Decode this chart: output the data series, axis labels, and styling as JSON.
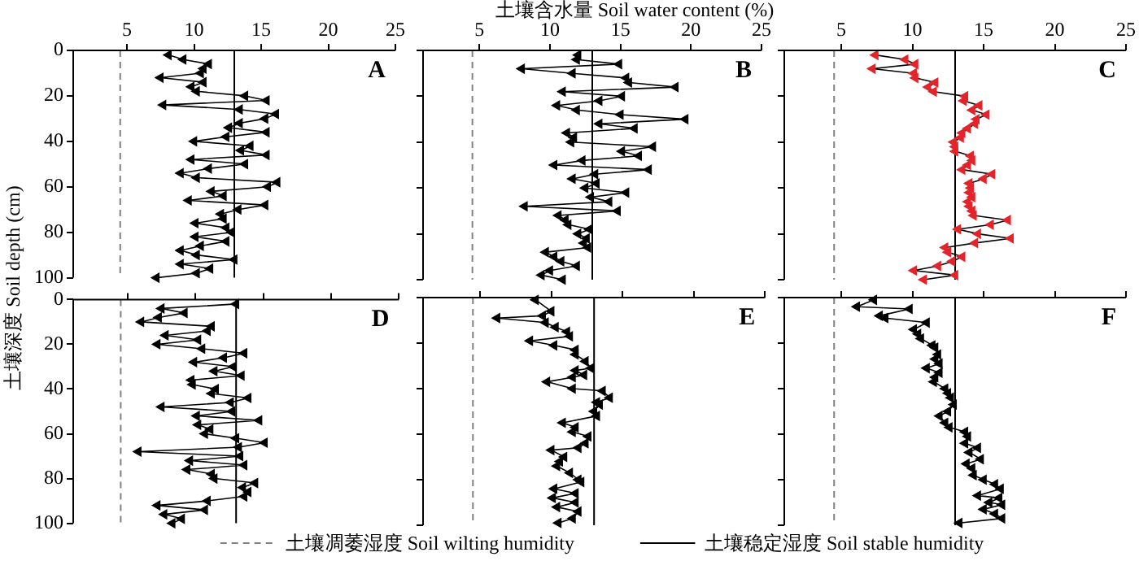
{
  "chart_data": [
    {
      "type": "line",
      "annotations": [
        "A"
      ],
      "ylabel": "土壤深度 Soil depth (cm)",
      "xlim": [
        1,
        25
      ],
      "xticks": [
        5,
        10,
        15,
        20,
        25
      ],
      "ylim": [
        100,
        0
      ],
      "yticks": [
        0,
        20,
        40,
        60,
        80,
        100
      ],
      "marker": "triangle",
      "grid": false,
      "ref_lines": [
        {
          "axis": "x",
          "value": 4.5,
          "line_style": "dashed",
          "color": "#808080"
        },
        {
          "axis": "x",
          "value": 13,
          "line_style": "solid",
          "color": "#000000"
        }
      ],
      "series": [
        {
          "color": "#000000",
          "x": [
            8.1,
            9.2,
            11.1,
            10.7,
            10.5,
            7.5,
            10.7,
            9.8,
            10.2,
            13.8,
            15.4,
            7.7,
            13.4,
            16.1,
            15.3,
            13.4,
            12.6,
            15.4,
            12.4,
            10.0,
            14.2,
            13.5,
            15.4,
            9.8,
            13.8,
            11.1,
            9.0,
            10.2,
            16.2,
            15.5,
            11.3,
            12.2,
            9.6,
            15.3,
            13.3,
            12.0,
            12.2,
            10.1,
            12.4,
            12.8,
            10.1,
            12.4,
            10.5,
            9.0,
            10.2,
            13.0,
            9.0,
            11.2,
            10.2,
            7.2
          ],
          "values": [
            2,
            4,
            6,
            8,
            10,
            12,
            14,
            16,
            18,
            20,
            22,
            24,
            26,
            28,
            30,
            32,
            34,
            36,
            38,
            40,
            42,
            44,
            46,
            48,
            50,
            52,
            54,
            56,
            58,
            60,
            62,
            64,
            66,
            68,
            70,
            72,
            74,
            76,
            78,
            80,
            82,
            84,
            86,
            88,
            90,
            92,
            94,
            96,
            98,
            100
          ]
        }
      ]
    },
    {
      "type": "line",
      "annotations": [
        "B"
      ],
      "xlabel": "土壤含水量 Soil water content (%)",
      "tick_labels": "x",
      "xlim": [
        1,
        25
      ],
      "xticks": [
        5,
        10,
        15,
        20,
        25
      ],
      "ylim": [
        100,
        0
      ],
      "yticks": [
        0,
        20,
        40,
        60,
        80,
        100
      ],
      "marker": "triangle",
      "grid": false,
      "ref_lines": [
        {
          "axis": "x",
          "value": 4.5,
          "line_style": "dashed",
          "color": "#808080"
        },
        {
          "axis": "x",
          "value": 13,
          "line_style": "solid",
          "color": "#000000"
        }
      ],
      "series": [
        {
          "color": "#000000",
          "x": [
            12.0,
            11.9,
            14.9,
            8.0,
            11.6,
            15.4,
            15.6,
            18.9,
            10.9,
            15.1,
            13.5,
            10.5,
            11.9,
            15.0,
            19.6,
            13.5,
            16.0,
            11.2,
            11.7,
            11.5,
            17.3,
            15.1,
            16.3,
            12.3,
            10.3,
            17.0,
            13.2,
            11.6,
            13.3,
            12.5,
            15.4,
            12.9,
            14.2,
            8.2,
            14.8,
            10.6,
            11.1,
            11.3,
            12.8,
            12.0,
            12.6,
            12.4,
            12.7,
            9.7,
            10.3,
            10.8,
            11.9,
            10.0,
            9.4,
            10.9
          ],
          "values": [
            2,
            4,
            6,
            8,
            10,
            12,
            14,
            16,
            18,
            20,
            22,
            24,
            26,
            28,
            30,
            32,
            34,
            36,
            38,
            40,
            42,
            44,
            46,
            48,
            50,
            52,
            54,
            56,
            58,
            60,
            62,
            64,
            66,
            68,
            70,
            72,
            74,
            76,
            78,
            80,
            82,
            84,
            86,
            88,
            90,
            92,
            94,
            96,
            98,
            100
          ]
        }
      ]
    },
    {
      "type": "line",
      "annotations": [
        "C"
      ],
      "tick_labels": "x",
      "xlim": [
        1,
        25
      ],
      "xticks": [
        5,
        10,
        15,
        20,
        25
      ],
      "ylim": [
        100,
        0
      ],
      "yticks": [
        0,
        20,
        40,
        60,
        80,
        100
      ],
      "marker": "triangle",
      "grid": false,
      "ref_lines": [
        {
          "axis": "x",
          "value": 4.5,
          "line_style": "dashed",
          "color": "#808080"
        },
        {
          "axis": "x",
          "value": 13,
          "line_style": "solid",
          "color": "#000000"
        }
      ],
      "series": [
        {
          "color": "#000000",
          "colors": [
            "#e3242b",
            "#e3242b",
            "#e3242b",
            "#e3242b",
            "#e3242b",
            "#e3242b",
            "#e3242b",
            "#e3242b",
            "#e3242b",
            "#e3242b",
            "#e3242b",
            "#e3242b",
            "#e3242b",
            "#e3242b",
            "#e3242b",
            "#e3242b",
            "#e3242b",
            "#e3242b",
            "#e3242b",
            "#e3242b",
            "#e3242b",
            "#e3242b",
            "#e3242b",
            "#e3242b",
            "#e3242b",
            "#e3242b",
            "#e3242b",
            "#e3242b",
            "#e3242b",
            "#e3242b",
            "#e3242b",
            "#e3242b",
            "#e3242b",
            "#e3242b",
            "#e3242b",
            "#e3242b",
            "#e3242b",
            "#e3242b",
            "#e3242b",
            "#e3242b",
            "#e3242b",
            "#e3242b",
            "#e3242b",
            "#e3242b",
            "#e3242b",
            "#e3242b",
            "#e3242b",
            "#e3242b",
            "#e3242b",
            "#e3242b"
          ],
          "x": [
            7.4,
            9.5,
            10.2,
            7.2,
            10.1,
            10.2,
            11.6,
            11.1,
            11.5,
            13.7,
            13.6,
            14.7,
            14.2,
            15.2,
            14.5,
            14.4,
            13.9,
            13.5,
            13.4,
            12.9,
            13.0,
            13.0,
            14.1,
            14.2,
            13.9,
            13.5,
            15.6,
            15.0,
            14.0,
            14.1,
            14.0,
            14.2,
            13.9,
            14.0,
            14.2,
            14.3,
            16.7,
            15.5,
            13.2,
            14.6,
            16.9,
            14.4,
            12.3,
            12.5,
            13.5,
            12.8,
            11.8,
            10.1,
            13.0,
            10.8
          ],
          "values": [
            2,
            4,
            6,
            8,
            10,
            12,
            14,
            16,
            18,
            20,
            22,
            24,
            26,
            28,
            30,
            32,
            34,
            36,
            38,
            40,
            42,
            44,
            46,
            48,
            50,
            52,
            54,
            56,
            58,
            60,
            62,
            64,
            66,
            68,
            70,
            72,
            74,
            76,
            78,
            80,
            82,
            84,
            86,
            88,
            90,
            92,
            94,
            96,
            98,
            100
          ]
        }
      ]
    },
    {
      "type": "line",
      "annotations": [
        "D"
      ],
      "tick_labels": "y",
      "xlim": [
        1,
        25
      ],
      "xticks": [
        5,
        10,
        15,
        20,
        25
      ],
      "ylim": [
        100,
        0
      ],
      "yticks": [
        0,
        20,
        40,
        60,
        80,
        100
      ],
      "marker": "triangle",
      "grid": false,
      "ref_lines": [
        {
          "axis": "x",
          "value": 4.5,
          "line_style": "dashed",
          "color": "#808080"
        },
        {
          "axis": "x",
          "value": 13,
          "line_style": "solid",
          "color": "#000000"
        }
      ],
      "series": [
        {
          "color": "#000000",
          "x": [
            13.0,
            7.5,
            9.2,
            7.3,
            6.0,
            11.2,
            10.9,
            7.8,
            10.2,
            7.2,
            10.5,
            13.6,
            12.1,
            9.9,
            12.8,
            11.4,
            13.4,
            9.7,
            9.8,
            11.5,
            11.2,
            13.9,
            12.6,
            7.5,
            12.7,
            10.1,
            14.7,
            10.2,
            11.1,
            10.7,
            13.0,
            15.1,
            13.2,
            5.8,
            13.3,
            9.6,
            13.6,
            9.4,
            11.2,
            11.4,
            14.4,
            13.5,
            13.9,
            13.6,
            10.9,
            7.2,
            10.7,
            7.7,
            9.0,
            8.3
          ],
          "values": [
            2,
            4,
            6,
            8,
            10,
            12,
            14,
            16,
            18,
            20,
            22,
            24,
            26,
            28,
            30,
            32,
            34,
            36,
            38,
            40,
            42,
            44,
            46,
            48,
            50,
            52,
            54,
            56,
            58,
            60,
            62,
            64,
            66,
            68,
            70,
            72,
            74,
            76,
            78,
            80,
            82,
            84,
            86,
            88,
            90,
            92,
            94,
            96,
            98,
            100
          ]
        }
      ]
    },
    {
      "type": "line",
      "annotations": [
        "E"
      ],
      "legend": "bottom",
      "tick_labels": false,
      "xlim": [
        1,
        25
      ],
      "xticks": [
        5,
        10,
        15,
        20,
        25
      ],
      "ylim": [
        100,
        0
      ],
      "yticks": [
        0,
        20,
        40,
        60,
        80,
        100
      ],
      "marker": "triangle",
      "grid": false,
      "ref_lines": [
        {
          "axis": "x",
          "value": 4.5,
          "line_style": "dashed",
          "color": "#808080",
          "label": "土壤凋萎湿度 Soil wilting humidity"
        },
        {
          "axis": "x",
          "value": 13,
          "line_style": "solid",
          "color": "#000000",
          "label": "土壤稳定湿度 Soil stable humidity"
        }
      ],
      "series": [
        {
          "color": "#000000",
          "x": [
            8.9,
            10.0,
            9.4,
            6.2,
            9.6,
            10.3,
            11.1,
            11.3,
            8.5,
            10.2,
            11.7,
            11.7,
            12.4,
            12.8,
            11.7,
            12.3,
            11.5,
            9.7,
            11.5,
            13.6,
            14.1,
            13.2,
            13.4,
            13.0,
            13.2,
            10.8,
            11.7,
            11.5,
            12.6,
            12.4,
            11.9,
            10.0,
            10.9,
            10.6,
            10.4,
            11.3,
            11.9,
            12.1,
            10.2,
            11.7,
            10.1,
            11.7,
            10.4,
            11.9,
            11.5,
            10.5
          ],
          "values": [
            1,
            6,
            8,
            9,
            11,
            13,
            15,
            17,
            19,
            21,
            23,
            25,
            28,
            31,
            32,
            34,
            35,
            37,
            40,
            41,
            44,
            46,
            47,
            50,
            52,
            55,
            57,
            59,
            61,
            64,
            66,
            67,
            70,
            72,
            74,
            77,
            80,
            81,
            84,
            86,
            88,
            90,
            92,
            94,
            97,
            99
          ]
        }
      ]
    },
    {
      "type": "line",
      "annotations": [
        "F"
      ],
      "tick_labels": false,
      "xlim": [
        1,
        25
      ],
      "xticks": [
        5,
        10,
        15,
        20,
        25
      ],
      "ylim": [
        100,
        0
      ],
      "yticks": [
        0,
        20,
        40,
        60,
        80,
        100
      ],
      "marker": "triangle",
      "grid": false,
      "ref_lines": [
        {
          "axis": "x",
          "value": 4.5,
          "line_style": "dashed",
          "color": "#808080"
        },
        {
          "axis": "x",
          "value": 13,
          "line_style": "solid",
          "color": "#000000"
        }
      ],
      "series": [
        {
          "color": "#000000",
          "x": [
            7.3,
            6.1,
            9.8,
            7.7,
            8.1,
            11.0,
            10.1,
            10.4,
            10.6,
            11.4,
            11.6,
            11.8,
            11.6,
            11.9,
            11.0,
            11.9,
            11.6,
            11.5,
            12.3,
            12.5,
            12.7,
            12.9,
            12.5,
            11.9,
            12.3,
            12.6,
            13.7,
            13.9,
            13.7,
            14.6,
            14.0,
            14.8,
            13.8,
            14.2,
            14.3,
            15.0,
            15.8,
            16.2,
            14.6,
            16.1,
            15.4,
            16.3,
            15.0,
            15.8,
            16.3,
            13.3
          ],
          "values": [
            1,
            4,
            5,
            8,
            9,
            11,
            14,
            16,
            18,
            21,
            22,
            25,
            27,
            29,
            31,
            33,
            35,
            37,
            40,
            42,
            44,
            47,
            50,
            52,
            55,
            57,
            59,
            61,
            64,
            66,
            68,
            71,
            73,
            75,
            78,
            80,
            82,
            84,
            87,
            88,
            90,
            91,
            93,
            95,
            97,
            99
          ]
        }
      ]
    }
  ]
}
